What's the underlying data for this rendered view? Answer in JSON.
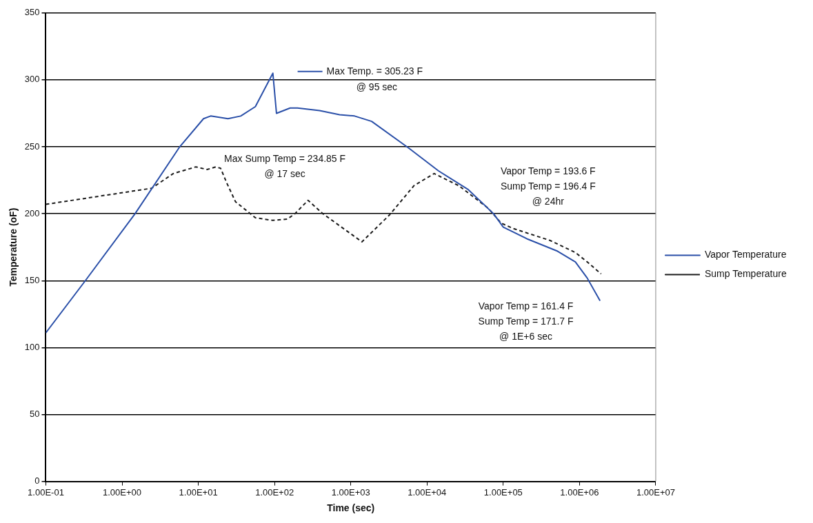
{
  "chart_data": {
    "type": "line",
    "xlabel": "Time (sec)",
    "ylabel": "Temperature (oF)",
    "xlim": [
      0.1,
      10000000
    ],
    "xticks": [
      {
        "value": 0.1,
        "label": "1.00E-01"
      },
      {
        "value": 1,
        "label": "1.00E+00"
      },
      {
        "value": 10,
        "label": "1.00E+01"
      },
      {
        "value": 100,
        "label": "1.00E+02"
      },
      {
        "value": 1000,
        "label": "1.00E+03"
      },
      {
        "value": 10000,
        "label": "1.00E+04"
      },
      {
        "value": 100000,
        "label": "1.00E+05"
      },
      {
        "value": 1000000,
        "label": "1.00E+06"
      },
      {
        "value": 10000000,
        "label": "1.00E+07"
      }
    ],
    "ylim": [
      0,
      350
    ],
    "yticks": [
      0,
      50,
      100,
      150,
      200,
      250,
      300,
      350
    ],
    "log": "x",
    "grid": "y",
    "legend": "right",
    "marker": "none",
    "series": [
      {
        "name": "Vapor Temperature",
        "color": "#2a4fa8",
        "line_style": "solid",
        "x": [
          0.1,
          0.33,
          1.48,
          5.7,
          11.7,
          14.5,
          24.5,
          36,
          56,
          95,
          106,
          160,
          200,
          390,
          714,
          1120,
          1876,
          5770,
          14150,
          34750,
          74600,
          100000,
          209000,
          515000,
          883000,
          1260000,
          1860000
        ],
        "values": [
          111,
          150,
          200,
          250,
          271,
          273,
          271,
          273,
          280,
          305,
          275,
          279,
          279,
          277,
          274,
          273,
          269,
          249,
          232,
          218,
          200,
          190,
          181,
          172,
          164,
          152,
          135
        ]
      },
      {
        "name": "Sump Temperature",
        "color": "#1a1a1a",
        "line_style": "dashed",
        "x": [
          0.1,
          2.43,
          4.7,
          9.3,
          13,
          17,
          19.6,
          23.6,
          30.7,
          56,
          95,
          147,
          185,
          275,
          430,
          1400,
          3210,
          6750,
          12400,
          26000,
          63800,
          93500,
          134000,
          412000,
          883000,
          1260000,
          1920000
        ],
        "values": [
          207,
          219,
          230,
          235,
          233,
          235,
          234,
          223,
          209,
          197,
          195,
          196,
          200,
          210,
          200,
          179,
          199,
          221,
          230,
          221,
          204,
          193,
          189,
          180,
          171,
          164,
          155
        ]
      }
    ],
    "annotations": [
      "Max Temp. = 305.23 F\n@ 95 sec",
      {
        "text": "Max Sump Temp = 234.85 F\n@ 17 sec",
        "x": 17,
        "y": 234.85
      },
      {
        "text": "Vapor Temp = 193.6 F\nSump Temp = 196.4 F\n@ 24hr",
        "x": 86400,
        "y": 196.4
      },
      "Vapor Temp = 161.4 F\nSump Temp = 171.7 F\n@ 1E+6 sec"
    ]
  }
}
